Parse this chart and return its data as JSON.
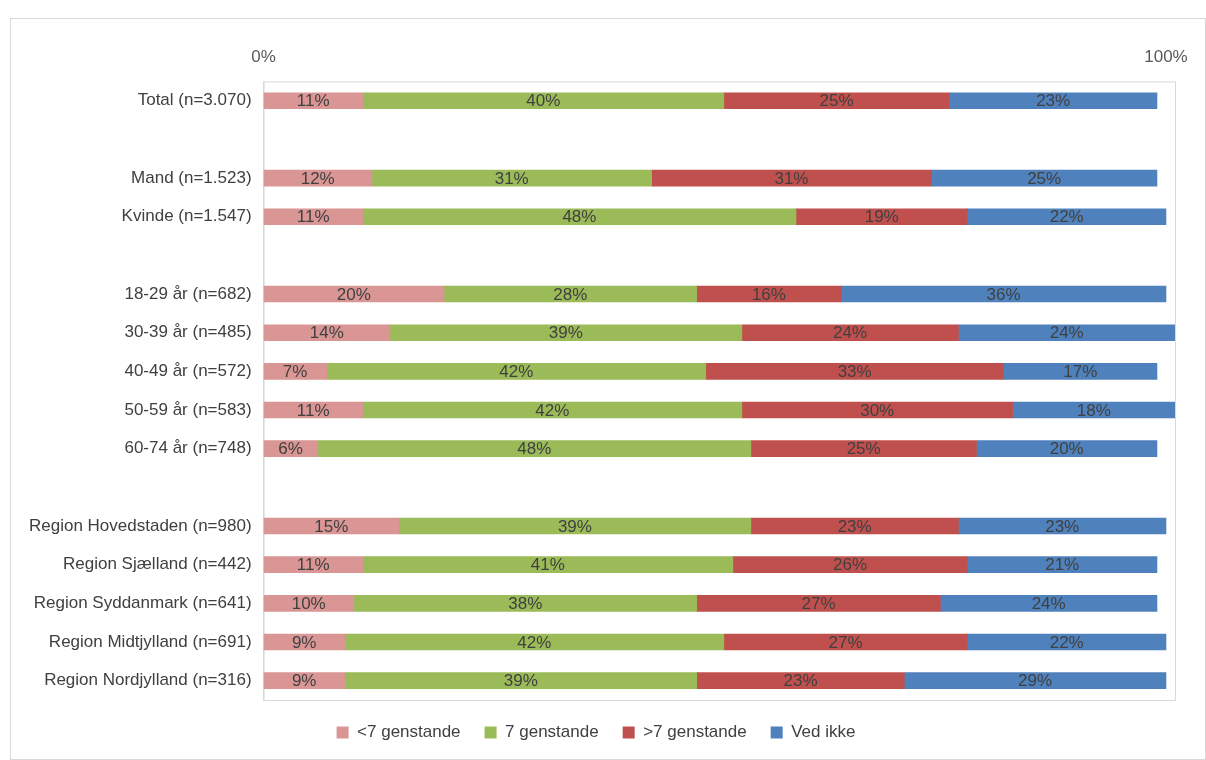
{
  "chart_data": {
    "type": "bar",
    "orientation": "horizontal",
    "stacked": true,
    "data_labels": true,
    "legend": "bottom",
    "categories": [
      "Total (n=3.070)",
      null,
      "Mand (n=1.523)",
      "Kvinde (n=1.547)",
      null,
      "18-29 år (n=682)",
      "30-39 år (n=485)",
      "40-49 år (n=572)",
      "50-59 år (n=583)",
      "60-74 år (n=748)",
      null,
      "Region Hovedstaden (n=980)",
      "Region Sjælland (n=442)",
      "Region Syddanmark (n=641)",
      "Region Midtjylland (n=691)",
      "Region Nordjylland (n=316)"
    ],
    "xlim": [
      0,
      101
    ],
    "xticks": [
      {
        "value": 0,
        "label": "0%"
      },
      {
        "value": 100,
        "label": "100%"
      }
    ],
    "series": [
      {
        "name": "<7 genstande",
        "color": "#d99694",
        "value_labels": [
          "11%",
          null,
          "12%",
          "11%",
          null,
          "20%",
          "14%",
          "7%",
          "11%",
          "6%",
          null,
          "15%",
          "11%",
          "10%",
          "9%",
          "9%"
        ],
        "values": [
          11,
          null,
          12,
          11,
          null,
          20,
          14,
          7,
          11,
          6,
          null,
          15,
          11,
          10,
          9,
          9
        ]
      },
      {
        "name": "7 genstande",
        "color": "#9bbb59",
        "value_labels": [
          "40%",
          null,
          "31%",
          "48%",
          null,
          "28%",
          "39%",
          "42%",
          "42%",
          "48%",
          null,
          "39%",
          "41%",
          "38%",
          "42%",
          "39%"
        ],
        "values": [
          40,
          null,
          31,
          48,
          null,
          28,
          39,
          42,
          42,
          48,
          null,
          39,
          41,
          38,
          42,
          39
        ]
      },
      {
        "name": ">7 genstande",
        "color": "#c0504d",
        "value_labels": [
          "25%",
          null,
          "31%",
          "19%",
          null,
          "16%",
          "24%",
          "33%",
          "30%",
          "25%",
          null,
          "23%",
          "26%",
          "27%",
          "27%",
          "23%"
        ],
        "values": [
          25,
          null,
          31,
          19,
          null,
          16,
          24,
          33,
          30,
          25,
          null,
          23,
          26,
          27,
          27,
          23
        ]
      },
      {
        "name": "Ved ikke",
        "color": "#4f81bd",
        "value_labels": [
          "23%",
          null,
          "25%",
          "22%",
          null,
          "36%",
          "24%",
          "17%",
          "18%",
          "20%",
          null,
          "23%",
          "21%",
          "24%",
          "22%",
          "29%"
        ],
        "values": [
          23,
          null,
          25,
          22,
          null,
          36,
          24,
          17,
          18,
          20,
          null,
          23,
          21,
          24,
          22,
          29
        ]
      }
    ]
  }
}
